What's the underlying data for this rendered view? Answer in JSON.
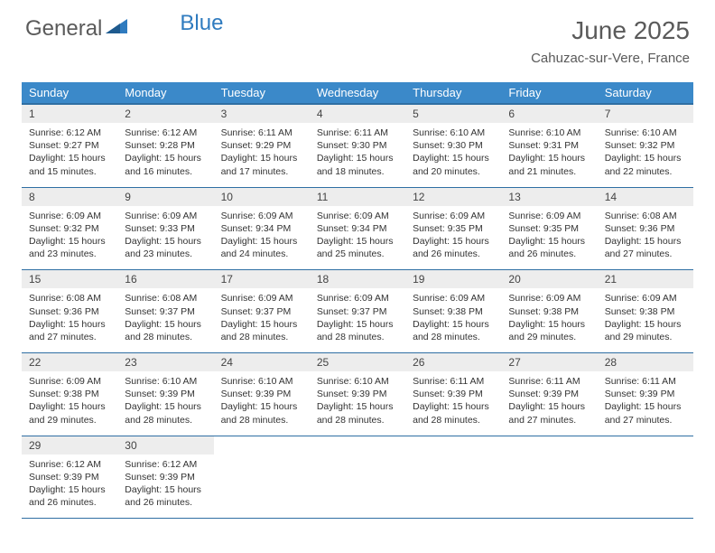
{
  "brand": {
    "part1": "General",
    "part2": "Blue"
  },
  "title": "June 2025",
  "location": "Cahuzac-sur-Vere, France",
  "colors": {
    "header_bg": "#3b89c9",
    "header_border": "#2f6fa3",
    "daynum_bg": "#ededed",
    "text": "#333333",
    "brand_gray": "#5a5a5a",
    "brand_blue": "#2f7bbf"
  },
  "dayHeaders": [
    "Sunday",
    "Monday",
    "Tuesday",
    "Wednesday",
    "Thursday",
    "Friday",
    "Saturday"
  ],
  "weeks": [
    [
      {
        "n": "1",
        "sr": "6:12 AM",
        "ss": "9:27 PM",
        "dl": "15 hours and 15 minutes."
      },
      {
        "n": "2",
        "sr": "6:12 AM",
        "ss": "9:28 PM",
        "dl": "15 hours and 16 minutes."
      },
      {
        "n": "3",
        "sr": "6:11 AM",
        "ss": "9:29 PM",
        "dl": "15 hours and 17 minutes."
      },
      {
        "n": "4",
        "sr": "6:11 AM",
        "ss": "9:30 PM",
        "dl": "15 hours and 18 minutes."
      },
      {
        "n": "5",
        "sr": "6:10 AM",
        "ss": "9:30 PM",
        "dl": "15 hours and 20 minutes."
      },
      {
        "n": "6",
        "sr": "6:10 AM",
        "ss": "9:31 PM",
        "dl": "15 hours and 21 minutes."
      },
      {
        "n": "7",
        "sr": "6:10 AM",
        "ss": "9:32 PM",
        "dl": "15 hours and 22 minutes."
      }
    ],
    [
      {
        "n": "8",
        "sr": "6:09 AM",
        "ss": "9:32 PM",
        "dl": "15 hours and 23 minutes."
      },
      {
        "n": "9",
        "sr": "6:09 AM",
        "ss": "9:33 PM",
        "dl": "15 hours and 23 minutes."
      },
      {
        "n": "10",
        "sr": "6:09 AM",
        "ss": "9:34 PM",
        "dl": "15 hours and 24 minutes."
      },
      {
        "n": "11",
        "sr": "6:09 AM",
        "ss": "9:34 PM",
        "dl": "15 hours and 25 minutes."
      },
      {
        "n": "12",
        "sr": "6:09 AM",
        "ss": "9:35 PM",
        "dl": "15 hours and 26 minutes."
      },
      {
        "n": "13",
        "sr": "6:09 AM",
        "ss": "9:35 PM",
        "dl": "15 hours and 26 minutes."
      },
      {
        "n": "14",
        "sr": "6:08 AM",
        "ss": "9:36 PM",
        "dl": "15 hours and 27 minutes."
      }
    ],
    [
      {
        "n": "15",
        "sr": "6:08 AM",
        "ss": "9:36 PM",
        "dl": "15 hours and 27 minutes."
      },
      {
        "n": "16",
        "sr": "6:08 AM",
        "ss": "9:37 PM",
        "dl": "15 hours and 28 minutes."
      },
      {
        "n": "17",
        "sr": "6:09 AM",
        "ss": "9:37 PM",
        "dl": "15 hours and 28 minutes."
      },
      {
        "n": "18",
        "sr": "6:09 AM",
        "ss": "9:37 PM",
        "dl": "15 hours and 28 minutes."
      },
      {
        "n": "19",
        "sr": "6:09 AM",
        "ss": "9:38 PM",
        "dl": "15 hours and 28 minutes."
      },
      {
        "n": "20",
        "sr": "6:09 AM",
        "ss": "9:38 PM",
        "dl": "15 hours and 29 minutes."
      },
      {
        "n": "21",
        "sr": "6:09 AM",
        "ss": "9:38 PM",
        "dl": "15 hours and 29 minutes."
      }
    ],
    [
      {
        "n": "22",
        "sr": "6:09 AM",
        "ss": "9:38 PM",
        "dl": "15 hours and 29 minutes."
      },
      {
        "n": "23",
        "sr": "6:10 AM",
        "ss": "9:39 PM",
        "dl": "15 hours and 28 minutes."
      },
      {
        "n": "24",
        "sr": "6:10 AM",
        "ss": "9:39 PM",
        "dl": "15 hours and 28 minutes."
      },
      {
        "n": "25",
        "sr": "6:10 AM",
        "ss": "9:39 PM",
        "dl": "15 hours and 28 minutes."
      },
      {
        "n": "26",
        "sr": "6:11 AM",
        "ss": "9:39 PM",
        "dl": "15 hours and 28 minutes."
      },
      {
        "n": "27",
        "sr": "6:11 AM",
        "ss": "9:39 PM",
        "dl": "15 hours and 27 minutes."
      },
      {
        "n": "28",
        "sr": "6:11 AM",
        "ss": "9:39 PM",
        "dl": "15 hours and 27 minutes."
      }
    ],
    [
      {
        "n": "29",
        "sr": "6:12 AM",
        "ss": "9:39 PM",
        "dl": "15 hours and 26 minutes."
      },
      {
        "n": "30",
        "sr": "6:12 AM",
        "ss": "9:39 PM",
        "dl": "15 hours and 26 minutes."
      },
      null,
      null,
      null,
      null,
      null
    ]
  ],
  "labels": {
    "sunrise": "Sunrise:",
    "sunset": "Sunset:",
    "daylight": "Daylight:"
  }
}
